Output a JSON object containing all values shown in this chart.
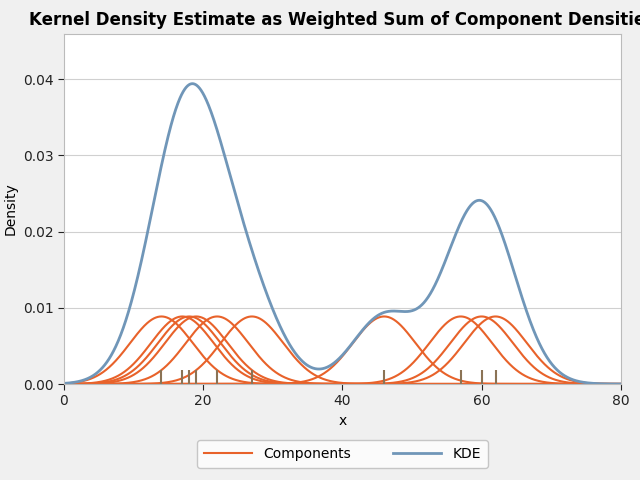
{
  "title": "Kernel Density Estimate as Weighted Sum of Component Densities",
  "xlabel": "x",
  "ylabel": "Density",
  "xlim": [
    0,
    80
  ],
  "ylim": [
    0,
    0.046
  ],
  "yticks": [
    0.0,
    0.01,
    0.02,
    0.03,
    0.04
  ],
  "xticks": [
    0,
    20,
    40,
    60,
    80
  ],
  "data_points": [
    14,
    17,
    18,
    19,
    22,
    27,
    46,
    57,
    60,
    62
  ],
  "bandwidth": 4.5,
  "component_color": "#E8622A",
  "kde_color": "#7096B8",
  "background_color": "#f0f0f0",
  "plot_bg_color": "#ffffff",
  "grid_color": "#d0d0d0",
  "tick_color": "#8B7355",
  "legend_labels": [
    "Components",
    "KDE"
  ],
  "title_fontsize": 12,
  "axis_fontsize": 10,
  "tick_fontsize": 10,
  "legend_fontsize": 10,
  "line_lw": 1.5,
  "kde_lw": 2.0
}
